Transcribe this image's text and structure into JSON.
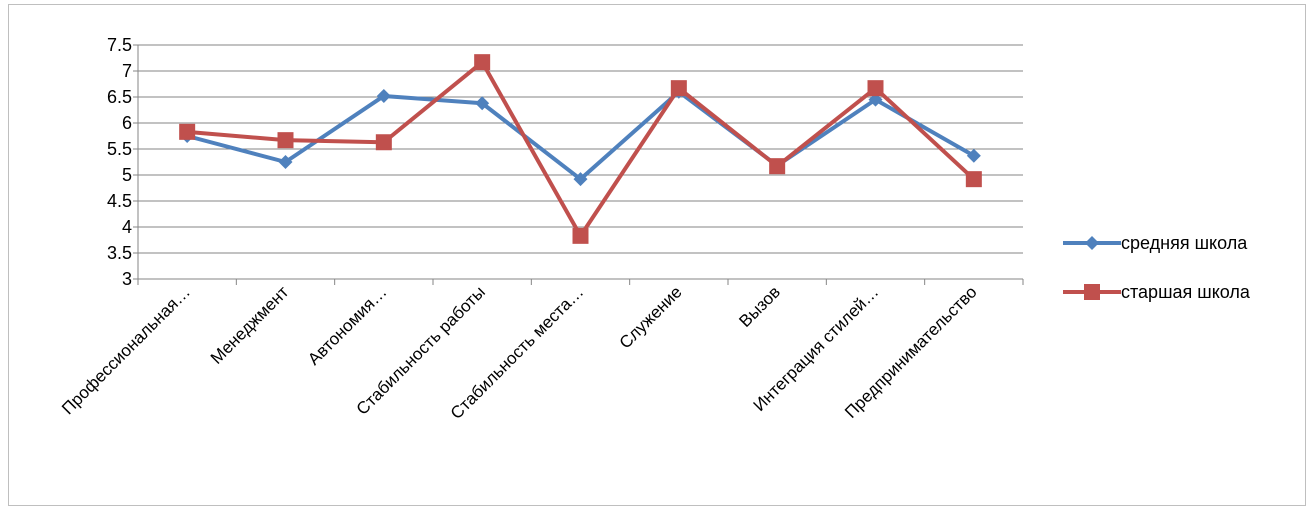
{
  "chart_data": {
    "type": "line",
    "categories": [
      "Профессиональная…",
      "Менеджмент",
      "Автономия…",
      "Стабильность работы",
      "Стабильность места…",
      "Служение",
      "Вызов",
      "Интеграция стилей…",
      "Предпринимательство"
    ],
    "series": [
      {
        "name": "средняя школа",
        "color": "#4F81BD",
        "marker": "diamond",
        "values": [
          5.75,
          5.25,
          6.52,
          6.38,
          4.92,
          6.6,
          5.18,
          6.45,
          5.37
        ]
      },
      {
        "name": "старшая школа",
        "color": "#C0504D",
        "marker": "square",
        "values": [
          5.83,
          5.67,
          5.63,
          7.17,
          3.83,
          6.67,
          5.17,
          6.67,
          4.92
        ]
      }
    ],
    "ylim": [
      3,
      7.5
    ],
    "yticks": [
      "3",
      "3.5",
      "4",
      "4.5",
      "5",
      "5.5",
      "6",
      "6.5",
      "7",
      "7.5"
    ],
    "grid": true,
    "legend": "right",
    "title": "",
    "xlabel": "",
    "ylabel": ""
  }
}
